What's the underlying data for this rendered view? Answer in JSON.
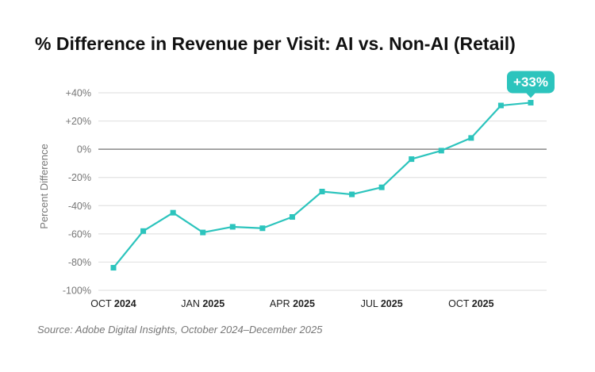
{
  "chart_data": {
    "type": "line",
    "title": "% Difference in Revenue per Visit: AI vs. Non-AI (Retail)",
    "source": "Source: Adobe Digital Insights, October 2024–December 2025",
    "ylabel": "Percent Difference",
    "xlabel": "",
    "ylim": [
      -100,
      40
    ],
    "yticks": [
      40,
      20,
      0,
      -20,
      -40,
      -60,
      -80,
      -100
    ],
    "ytick_labels": [
      "+40%",
      "+20%",
      "0%",
      "-20%",
      "-40%",
      "-60%",
      "-80%",
      "-100%"
    ],
    "x": [
      "2024-10",
      "2024-11",
      "2024-12",
      "2025-01",
      "2025-02",
      "2025-03",
      "2025-04",
      "2025-05",
      "2025-06",
      "2025-07",
      "2025-08",
      "2025-09",
      "2025-10",
      "2025-11",
      "2025-12"
    ],
    "xtick_labels": [
      {
        "month": "OCT",
        "year": "2024",
        "index": 0
      },
      {
        "month": "JAN",
        "year": "2025",
        "index": 3
      },
      {
        "month": "APR",
        "year": "2025",
        "index": 6
      },
      {
        "month": "JUL",
        "year": "2025",
        "index": 9
      },
      {
        "month": "OCT",
        "year": "2025",
        "index": 12
      }
    ],
    "values": [
      -84,
      -58,
      -45,
      -59,
      -55,
      -56,
      -48,
      -30,
      -32,
      -27,
      -7,
      -1,
      8,
      31,
      33
    ],
    "annotation": "+33%",
    "grid": true,
    "line_color": "#2cc4bd",
    "zero_line_color": "#888888"
  }
}
